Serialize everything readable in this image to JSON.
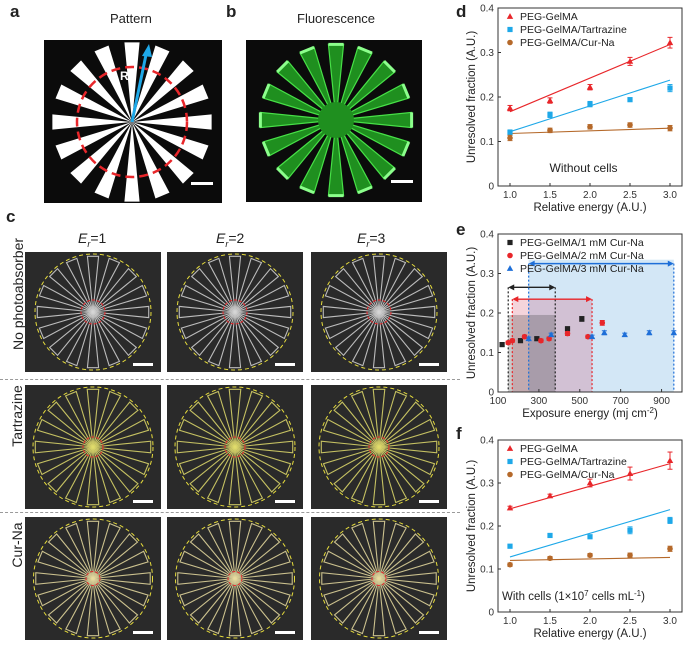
{
  "panels": {
    "a": {
      "letter": "a",
      "title": "Pattern",
      "marker": "R"
    },
    "b": {
      "letter": "b",
      "title": "Fluorescence"
    },
    "c": {
      "letter": "c",
      "columns": [
        {
          "pre": "E",
          "sub": "r",
          "post": "=1"
        },
        {
          "pre": "E",
          "sub": "r",
          "post": "=2"
        },
        {
          "pre": "E",
          "sub": "r",
          "post": "=3"
        }
      ],
      "rows": [
        "No photoabsorber",
        "Tartrazine",
        "Cur-Na"
      ]
    },
    "d": {
      "letter": "d"
    },
    "e": {
      "letter": "e"
    },
    "f": {
      "letter": "f"
    }
  },
  "colors": {
    "red": "#e8262a",
    "blue": "#1ea8e8",
    "brown": "#b5692a",
    "black": "#222222",
    "yellow": "#e6dc3c",
    "green": "#3cd23c"
  },
  "chart_data": [
    {
      "id": "d",
      "type": "scatter",
      "xlabel": "Relative energy (A.U.)",
      "ylabel": "Unresolved fraction (A.U.)",
      "xlim": [
        0.85,
        3.15
      ],
      "ylim": [
        0,
        0.4
      ],
      "xticks": [
        "1.0",
        "1.5",
        "2.0",
        "2.5",
        "3.0"
      ],
      "yticks": [
        "0",
        "0.1",
        "0.2",
        "0.3",
        "0.4"
      ],
      "annotation": "Without cells",
      "legend": "top-left",
      "series": [
        {
          "name": "PEG-GelMA",
          "marker": "triangle",
          "color": "#e8262a",
          "x": [
            1.0,
            1.5,
            2.0,
            2.5,
            3.0
          ],
          "y": [
            0.175,
            0.192,
            0.222,
            0.28,
            0.322
          ],
          "err": [
            0.006,
            0.006,
            0.006,
            0.009,
            0.012
          ],
          "fit": [
            [
              1.0,
              0.167
            ],
            [
              3.0,
              0.318
            ]
          ]
        },
        {
          "name": "PEG-GelMA/Tartrazine",
          "marker": "square",
          "color": "#1ea8e8",
          "x": [
            1.0,
            1.5,
            2.0,
            2.5,
            3.0
          ],
          "y": [
            0.12,
            0.16,
            0.184,
            0.194,
            0.22
          ],
          "err": [
            0.006,
            0.006,
            0.006,
            0.004,
            0.008
          ],
          "fit": [
            [
              1.0,
              0.122
            ],
            [
              3.0,
              0.238
            ]
          ]
        },
        {
          "name": "PEG-GelMA/Cur-Na",
          "marker": "circle",
          "color": "#b5692a",
          "x": [
            1.0,
            1.5,
            2.0,
            2.5,
            3.0
          ],
          "y": [
            0.108,
            0.125,
            0.133,
            0.137,
            0.13
          ],
          "err": [
            0.006,
            0.005,
            0.005,
            0.005,
            0.006
          ],
          "fit": [
            [
              1.0,
              0.118
            ],
            [
              3.0,
              0.13
            ]
          ]
        }
      ]
    },
    {
      "id": "e",
      "type": "scatter",
      "xlabel_main": "Exposure energy (mj cm",
      "xlabel_sup": "-2",
      "xlabel_end": ")",
      "ylabel": "Unresolved fraction (A.U.)",
      "xlim": [
        100,
        1000
      ],
      "ylim": [
        0,
        0.4
      ],
      "xticks": [
        "100",
        "300",
        "500",
        "700",
        "900"
      ],
      "yticks": [
        "0",
        "0.1",
        "0.2",
        "0.3",
        "0.4"
      ],
      "legend": "top-left",
      "series": [
        {
          "name": "PEG-GelMA/1 mM Cur-Na",
          "marker": "square",
          "color": "#222222",
          "x": [
            120,
            210,
            290,
            440,
            510
          ],
          "y": [
            0.12,
            0.13,
            0.135,
            0.16,
            0.185
          ],
          "err": [
            0.004,
            0.004,
            0.004,
            0.005,
            0.006
          ]
        },
        {
          "name": "PEG-GelMA/2 mM Cur-Na",
          "marker": "circle",
          "color": "#e8262a",
          "x": [
            150,
            170,
            230,
            310,
            350,
            440,
            540,
            610
          ],
          "y": [
            0.125,
            0.13,
            0.14,
            0.13,
            0.135,
            0.148,
            0.14,
            0.175
          ],
          "err": [
            0.004,
            0.004,
            0.004,
            0.004,
            0.004,
            0.005,
            0.004,
            0.006
          ]
        },
        {
          "name": "PEG-GelMA/3 mM Cur-Na",
          "marker": "triangle",
          "color": "#1e6fd8",
          "x": [
            250,
            360,
            560,
            620,
            720,
            840,
            960
          ],
          "y": [
            0.135,
            0.145,
            0.14,
            0.15,
            0.145,
            0.15,
            0.15
          ],
          "err": [
            0.004,
            0.004,
            0.004,
            0.005,
            0.004,
            0.005,
            0.005
          ]
        }
      ],
      "ranges": [
        {
          "color": "#222222",
          "from": 150,
          "to": 380,
          "arrow_y": 0.265,
          "band_top": 0.195
        },
        {
          "color": "#e8262a",
          "from": 170,
          "to": 560,
          "arrow_y": 0.235,
          "band_top": 0.235
        },
        {
          "color": "#1e6fd8",
          "from": 250,
          "to": 960,
          "arrow_y": 0.325,
          "band_top": 0.335
        }
      ]
    },
    {
      "id": "f",
      "type": "scatter",
      "xlabel": "Relative energy (A.U.)",
      "ylabel": "Unresolved fraction (A.U.)",
      "xlim": [
        0.85,
        3.15
      ],
      "ylim": [
        0,
        0.4
      ],
      "xticks": [
        "1.0",
        "1.5",
        "2.0",
        "2.5",
        "3.0"
      ],
      "yticks": [
        "0",
        "0.1",
        "0.2",
        "0.3",
        "0.4"
      ],
      "annotation_main": "With cells (1×10",
      "annotation_sup1": "7",
      "annotation_mid": " cells mL",
      "annotation_sup2": "-1",
      "annotation_end": ")",
      "legend": "top-left",
      "series": [
        {
          "name": "PEG-GelMA",
          "marker": "triangle",
          "color": "#e8262a",
          "x": [
            1.0,
            1.5,
            2.0,
            2.5,
            3.0
          ],
          "y": [
            0.242,
            0.27,
            0.3,
            0.322,
            0.352
          ],
          "err": [
            0.004,
            0.004,
            0.009,
            0.015,
            0.02
          ],
          "fit": [
            [
              1.0,
              0.24
            ],
            [
              3.0,
              0.345
            ]
          ]
        },
        {
          "name": "PEG-GelMA/Tartrazine",
          "marker": "square",
          "color": "#1ea8e8",
          "x": [
            1.0,
            1.5,
            2.0,
            2.5,
            3.0
          ],
          "y": [
            0.153,
            0.178,
            0.175,
            0.19,
            0.213
          ],
          "err": [
            0.004,
            0.004,
            0.004,
            0.008,
            0.007
          ],
          "fit": [
            [
              1.0,
              0.128
            ],
            [
              3.0,
              0.238
            ]
          ]
        },
        {
          "name": "PEG-GelMA/Cur-Na",
          "marker": "circle",
          "color": "#b5692a",
          "x": [
            1.0,
            1.5,
            2.0,
            2.5,
            3.0
          ],
          "y": [
            0.11,
            0.125,
            0.132,
            0.132,
            0.147
          ],
          "err": [
            0.004,
            0.004,
            0.004,
            0.005,
            0.006
          ],
          "fit": [
            [
              1.0,
              0.12
            ],
            [
              3.0,
              0.127
            ]
          ]
        }
      ]
    }
  ]
}
